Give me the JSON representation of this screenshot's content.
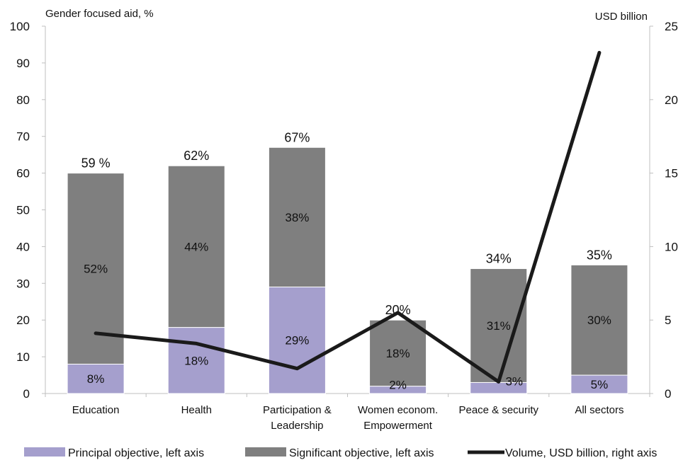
{
  "chart_data": {
    "type": "bar",
    "stacked": true,
    "left_axis_title": "Gender focused aid, %",
    "right_axis_title": "USD billion",
    "left_ylim": [
      0,
      100
    ],
    "right_ylim": [
      0,
      25
    ],
    "left_ticks": [
      "0",
      "10",
      "20",
      "30",
      "40",
      "50",
      "60",
      "70",
      "80",
      "90",
      "100"
    ],
    "right_ticks": [
      "0",
      "5",
      "10",
      "15",
      "20",
      "25"
    ],
    "grid": false,
    "legend_position": "bottom",
    "categories": [
      [
        "Education"
      ],
      [
        "Health"
      ],
      [
        "Participation &",
        "Leadership"
      ],
      [
        "Women econom.",
        "Empowerment"
      ],
      [
        "Peace & security"
      ],
      [
        "All sectors"
      ]
    ],
    "series": [
      {
        "name": "Principal objective, left axis",
        "axis": "left",
        "kind": "bar",
        "color": "#a59fcd",
        "values": [
          8,
          18,
          29,
          2,
          3,
          5
        ],
        "labels": [
          "8%",
          "18%",
          "29%",
          "2%",
          "3%",
          "5%"
        ]
      },
      {
        "name": "Significant objective, left axis",
        "axis": "left",
        "kind": "bar",
        "color": "#7f7f7f",
        "values": [
          52,
          44,
          38,
          18,
          31,
          30
        ],
        "labels": [
          "52%",
          "44%",
          "38%",
          "18%",
          "31%",
          "30%"
        ]
      },
      {
        "name": "Volume, USD billion, right axis",
        "axis": "right",
        "kind": "line",
        "color": "#1a1a1a",
        "values": [
          4.1,
          3.4,
          1.7,
          5.5,
          0.8,
          23.2
        ],
        "plot_on": [
          0,
          1,
          2,
          3,
          4,
          5
        ]
      }
    ],
    "totals": [
      "59 %",
      "62%",
      "67%",
      "20%",
      "34%",
      "35%"
    ]
  }
}
